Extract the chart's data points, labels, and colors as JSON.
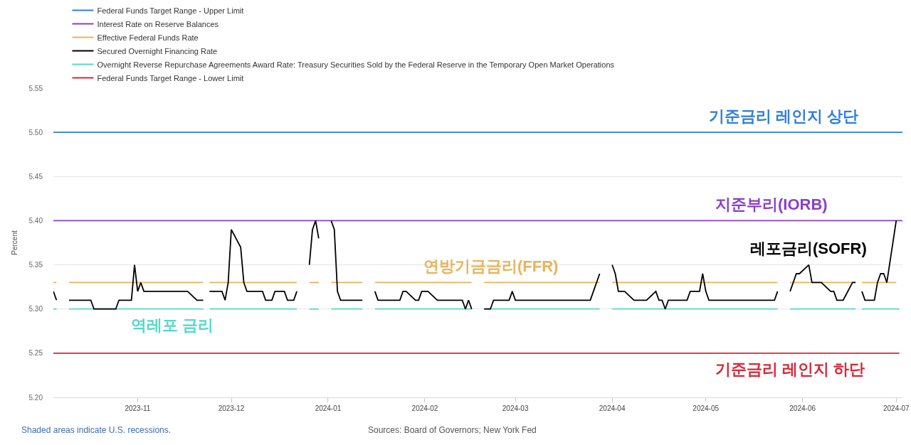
{
  "chart_data": {
    "type": "line",
    "ylabel": "Percent",
    "xlim": [
      "2023-10-05",
      "2024-07-03"
    ],
    "xticks": [
      "2023-11",
      "2023-12",
      "2024-01",
      "2024-02",
      "2024-03",
      "2024-04",
      "2024-05",
      "2024-06",
      "2024-07"
    ],
    "ylim": [
      5.2,
      5.55
    ],
    "yticks": [
      {
        "value": 5.2,
        "label": "5.20"
      },
      {
        "value": 5.25,
        "label": "5.25"
      },
      {
        "value": 5.3,
        "label": "5.30"
      },
      {
        "value": 5.35,
        "label": "5.35"
      },
      {
        "value": 5.4,
        "label": "5.40"
      },
      {
        "value": 5.45,
        "label": "5.45"
      },
      {
        "value": 5.5,
        "label": "5.50"
      },
      {
        "value": 5.55,
        "label": "5.55"
      }
    ],
    "grid": "y",
    "legend": "top left",
    "series": [
      {
        "name": "Federal Funds Target Range - Upper Limit",
        "color": "#2f7ed8",
        "x": [
          "2023-10-05",
          "2024-07-03"
        ],
        "values": [
          5.5,
          5.5
        ]
      },
      {
        "name": "Interest Rate on Reserve Balances",
        "color": "#8a3fc8",
        "x": [
          "2023-10-05",
          "2024-07-03"
        ],
        "values": [
          5.4,
          5.4
        ]
      },
      {
        "name": "Effective Federal Funds Rate",
        "color": "#e8b35e",
        "x": [
          "2023-10-05",
          "2023-10-06",
          "2023-10-09",
          "2023-10-10",
          "2023-11-22",
          "2023-11-23",
          "2023-11-24",
          "2023-12-22",
          "2023-12-25",
          "2023-12-26",
          "2023-12-29",
          "2024-01-01",
          "2024-01-02",
          "2024-01-12",
          "2024-01-15",
          "2024-01-16",
          "2024-02-16",
          "2024-02-19",
          "2024-02-20",
          "2024-03-28",
          "2024-03-29",
          "2024-04-01",
          "2024-05-24",
          "2024-05-27",
          "2024-05-28",
          "2024-06-18",
          "2024-06-19",
          "2024-06-20",
          "2024-07-01"
        ],
        "values": [
          5.33,
          5.33,
          null,
          5.33,
          5.33,
          null,
          5.33,
          5.33,
          null,
          5.33,
          5.33,
          null,
          5.33,
          5.33,
          null,
          5.33,
          5.33,
          null,
          5.33,
          5.33,
          null,
          5.33,
          5.33,
          null,
          5.33,
          5.33,
          null,
          5.33,
          5.33
        ]
      },
      {
        "name": "Secured Overnight Financing Rate",
        "color": "#000000",
        "x": [
          "2023-10-05",
          "2023-10-06",
          "2023-10-09",
          "2023-10-10",
          "2023-10-17",
          "2023-10-18",
          "2023-10-25",
          "2023-10-26",
          "2023-10-30",
          "2023-10-31",
          "2023-11-01",
          "2023-11-02",
          "2023-11-03",
          "2023-11-17",
          "2023-11-20",
          "2023-11-22",
          "2023-11-23",
          "2023-11-24",
          "2023-11-28",
          "2023-11-29",
          "2023-11-30",
          "2023-12-01",
          "2023-12-04",
          "2023-12-05",
          "2023-12-06",
          "2023-12-11",
          "2023-12-12",
          "2023-12-14",
          "2023-12-15",
          "2023-12-18",
          "2023-12-19",
          "2023-12-21",
          "2023-12-22",
          "2023-12-25",
          "2023-12-26",
          "2023-12-27",
          "2023-12-28",
          "2023-12-29",
          "2024-01-01",
          "2024-01-02",
          "2024-01-03",
          "2024-01-04",
          "2024-01-05",
          "2024-01-12",
          "2024-01-15",
          "2024-01-16",
          "2024-01-17",
          "2024-01-24",
          "2024-01-25",
          "2024-01-26",
          "2024-01-29",
          "2024-01-30",
          "2024-01-31",
          "2024-02-02",
          "2024-02-05",
          "2024-02-13",
          "2024-02-14",
          "2024-02-15",
          "2024-02-16",
          "2024-02-19",
          "2024-02-20",
          "2024-02-22",
          "2024-02-23",
          "2024-02-28",
          "2024-02-29",
          "2024-03-01",
          "2024-03-25",
          "2024-03-26",
          "2024-03-27",
          "2024-03-28",
          "2024-03-29",
          "2024-04-01",
          "2024-04-02",
          "2024-04-03",
          "2024-04-05",
          "2024-04-08",
          "2024-04-12",
          "2024-04-15",
          "2024-04-16",
          "2024-04-17",
          "2024-04-18",
          "2024-04-19",
          "2024-04-25",
          "2024-04-26",
          "2024-04-29",
          "2024-04-30",
          "2024-05-01",
          "2024-05-02",
          "2024-05-23",
          "2024-05-24",
          "2024-05-27",
          "2024-05-28",
          "2024-05-29",
          "2024-05-30",
          "2024-05-31",
          "2024-06-03",
          "2024-06-04",
          "2024-06-07",
          "2024-06-10",
          "2024-06-11",
          "2024-06-12",
          "2024-06-14",
          "2024-06-17",
          "2024-06-18",
          "2024-06-19",
          "2024-06-20",
          "2024-06-21",
          "2024-06-24",
          "2024-06-25",
          "2024-06-26",
          "2024-06-27",
          "2024-06-28",
          "2024-07-01"
        ],
        "values": [
          5.32,
          5.31,
          null,
          5.31,
          5.31,
          5.3,
          5.3,
          5.31,
          5.31,
          5.35,
          5.32,
          5.33,
          5.32,
          5.32,
          5.31,
          5.31,
          null,
          5.32,
          5.32,
          5.31,
          5.33,
          5.39,
          5.37,
          5.33,
          5.32,
          5.32,
          5.31,
          5.31,
          5.32,
          5.32,
          5.31,
          5.31,
          5.32,
          null,
          5.35,
          5.39,
          5.4,
          5.38,
          null,
          5.4,
          5.39,
          5.32,
          5.31,
          5.31,
          null,
          5.32,
          5.31,
          5.31,
          5.32,
          5.32,
          5.31,
          5.31,
          5.32,
          5.32,
          5.31,
          5.31,
          5.3,
          5.31,
          5.3,
          null,
          5.3,
          5.3,
          5.31,
          5.31,
          5.32,
          5.31,
          5.31,
          5.32,
          5.33,
          5.34,
          null,
          5.35,
          5.34,
          5.32,
          5.32,
          5.31,
          5.31,
          5.32,
          5.31,
          5.31,
          5.3,
          5.31,
          5.31,
          5.32,
          5.32,
          5.34,
          5.32,
          5.31,
          5.31,
          5.32,
          null,
          5.32,
          5.33,
          5.34,
          5.34,
          5.35,
          5.33,
          5.33,
          5.32,
          5.32,
          5.31,
          5.31,
          5.33,
          5.33,
          null,
          5.32,
          5.31,
          5.31,
          5.33,
          5.34,
          5.34,
          5.33,
          5.4
        ]
      },
      {
        "name": "Overnight Reverse Repurchase Agreements Award Rate: Treasury Securities Sold by the Federal Reserve in the Temporary Open Market Operations",
        "color": "#55d8c8",
        "x": [
          "2023-10-05",
          "2023-10-06",
          "2023-10-09",
          "2023-10-10",
          "2023-11-22",
          "2023-11-23",
          "2023-11-24",
          "2023-12-22",
          "2023-12-25",
          "2023-12-26",
          "2023-12-29",
          "2024-01-01",
          "2024-01-02",
          "2024-01-12",
          "2024-01-15",
          "2024-01-16",
          "2024-02-16",
          "2024-02-19",
          "2024-02-20",
          "2024-03-28",
          "2024-03-29",
          "2024-04-01",
          "2024-05-24",
          "2024-05-27",
          "2024-05-28",
          "2024-06-18",
          "2024-06-19",
          "2024-06-20",
          "2024-07-02"
        ],
        "values": [
          5.3,
          5.3,
          null,
          5.3,
          5.3,
          null,
          5.3,
          5.3,
          null,
          5.3,
          5.3,
          null,
          5.3,
          5.3,
          null,
          5.3,
          5.3,
          null,
          5.3,
          5.3,
          null,
          5.3,
          5.3,
          null,
          5.3,
          5.3,
          null,
          5.3,
          5.3
        ]
      },
      {
        "name": "Federal Funds Target Range - Lower Limit",
        "color": "#d62839",
        "x": [
          "2023-10-05",
          "2024-07-02"
        ],
        "values": [
          5.25,
          5.25
        ]
      }
    ],
    "annotations": [
      {
        "text": "기준금리 레인지 상단",
        "x": "2024-05-26",
        "y": 5.5
      },
      {
        "text": "지준부리(IORB)",
        "x": "2024-05-22",
        "y": 5.4
      },
      {
        "text": "연방기금금리(FFR)",
        "x": "2024-02-22",
        "y": 5.33
      },
      {
        "text": "레포금리(SOFR)",
        "x": "2024-06-03",
        "y": 5.35
      },
      {
        "text": "역레포 금리",
        "x": "2023-11-12",
        "y": 5.3
      },
      {
        "text": "기준금리 레인지 하단",
        "x": "2024-05-28",
        "y": 5.25
      },
      "Shaded areas indicate U.S. recessions.",
      "Sources: Board of Governors; New York Fed"
    ]
  }
}
